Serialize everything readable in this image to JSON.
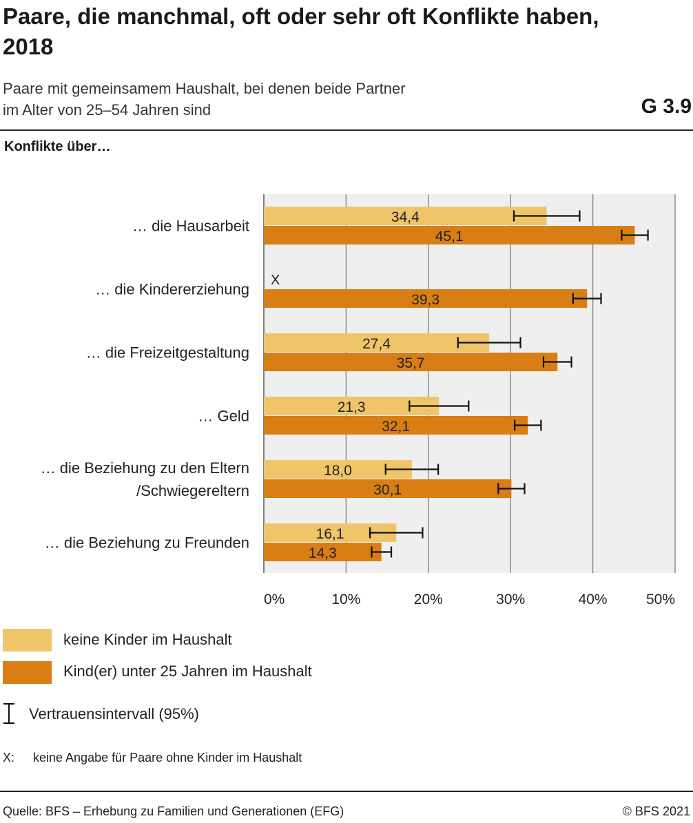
{
  "header": {
    "title": "Paare, die manchmal, oft oder sehr oft Konflikte haben, 2018",
    "subtitle_line1": "Paare mit gemeinsamem Haushalt, bei denen beide Partner",
    "subtitle_line2": "im Alter von 25–54 Jahren sind",
    "graphic_number": "G 3.9"
  },
  "section_label": "Konflikte über…",
  "chart_data": {
    "type": "bar",
    "orientation": "horizontal",
    "categories": [
      [
        "… die Hausarbeit"
      ],
      [
        "… die Kindererziehung"
      ],
      [
        "… die Freizeitgestaltung"
      ],
      [
        "… Geld"
      ],
      [
        "… die Beziehung zu den Eltern",
        "/Schwiegereltern"
      ],
      [
        "… die Beziehung zu Freunden"
      ]
    ],
    "series": [
      {
        "name": "keine Kinder im Haushalt",
        "color": "#F0C56A",
        "values": [
          34.4,
          null,
          27.4,
          21.3,
          18.0,
          16.1
        ],
        "labels": [
          "34,4",
          "X",
          "27,4",
          "21,3",
          "18,0",
          "16,1"
        ],
        "ci": [
          [
            30.4,
            38.4
          ],
          null,
          [
            23.6,
            31.2
          ],
          [
            17.7,
            24.9
          ],
          [
            14.8,
            21.2
          ],
          [
            12.9,
            19.3
          ]
        ]
      },
      {
        "name": "Kind(er) unter 25 Jahren im Haushalt",
        "color": "#D87E14",
        "values": [
          45.1,
          39.3,
          35.7,
          32.1,
          30.1,
          14.3
        ],
        "labels": [
          "45,1",
          "39,3",
          "35,7",
          "32,1",
          "30,1",
          "14,3"
        ],
        "ci": [
          [
            43.5,
            46.7
          ],
          [
            37.6,
            41.0
          ],
          [
            34.0,
            37.4
          ],
          [
            30.5,
            33.7
          ],
          [
            28.5,
            31.7
          ],
          [
            13.1,
            15.5
          ]
        ]
      }
    ],
    "xlim": [
      0,
      50
    ],
    "xticks": [
      0,
      10,
      20,
      30,
      40,
      50
    ],
    "xtick_labels": [
      "0%",
      "10%",
      "20%",
      "30%",
      "40%",
      "50%"
    ],
    "grid": true
  },
  "legend": {
    "series1": "keine Kinder im Haushalt",
    "series2": "Kind(er) unter 25 Jahren im Haushalt",
    "ci": "Vertrauensintervall (95%)"
  },
  "note": {
    "key": "X:",
    "text": "keine Angabe für Paare ohne Kinder im Haushalt"
  },
  "footer": {
    "source": "Quelle: BFS – Erhebung zu Familien und Generationen (EFG)",
    "copyright": "© BFS 2021"
  },
  "colors": {
    "plot_background": "#EFEFEF",
    "grid": "#8C8C8C",
    "series1": "#F0C56A",
    "series2": "#D87E14"
  }
}
